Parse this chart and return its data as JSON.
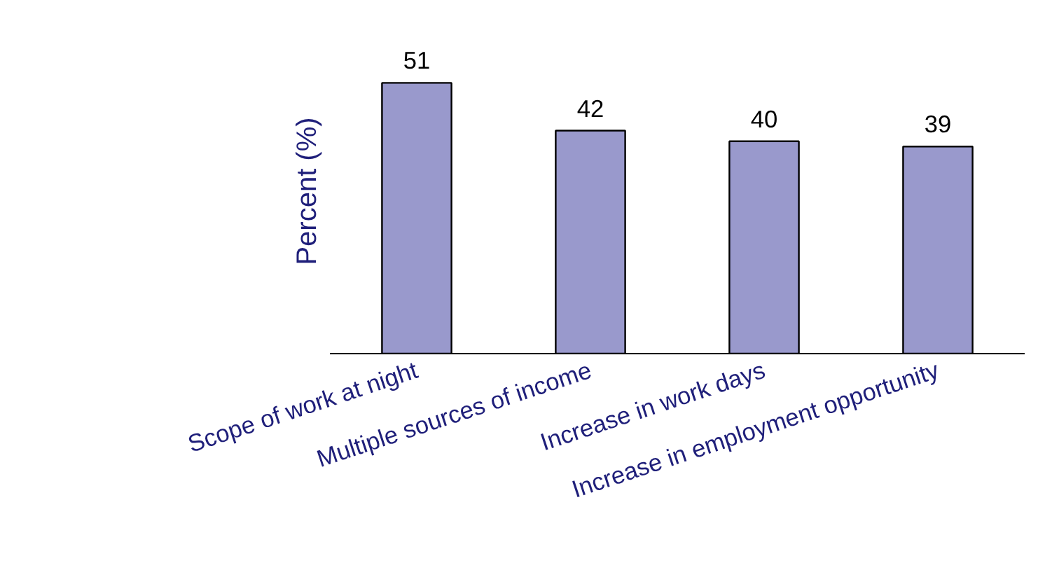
{
  "chart_data": {
    "type": "bar",
    "ylabel": "Percent (%)",
    "categories": [
      "Scope of work at night",
      "Multiple sources of income",
      "Increase in work days",
      "Increase in employment opportunity"
    ],
    "values": [
      51,
      42,
      40,
      39
    ],
    "color": "#9999cc",
    "data_labels": true
  }
}
